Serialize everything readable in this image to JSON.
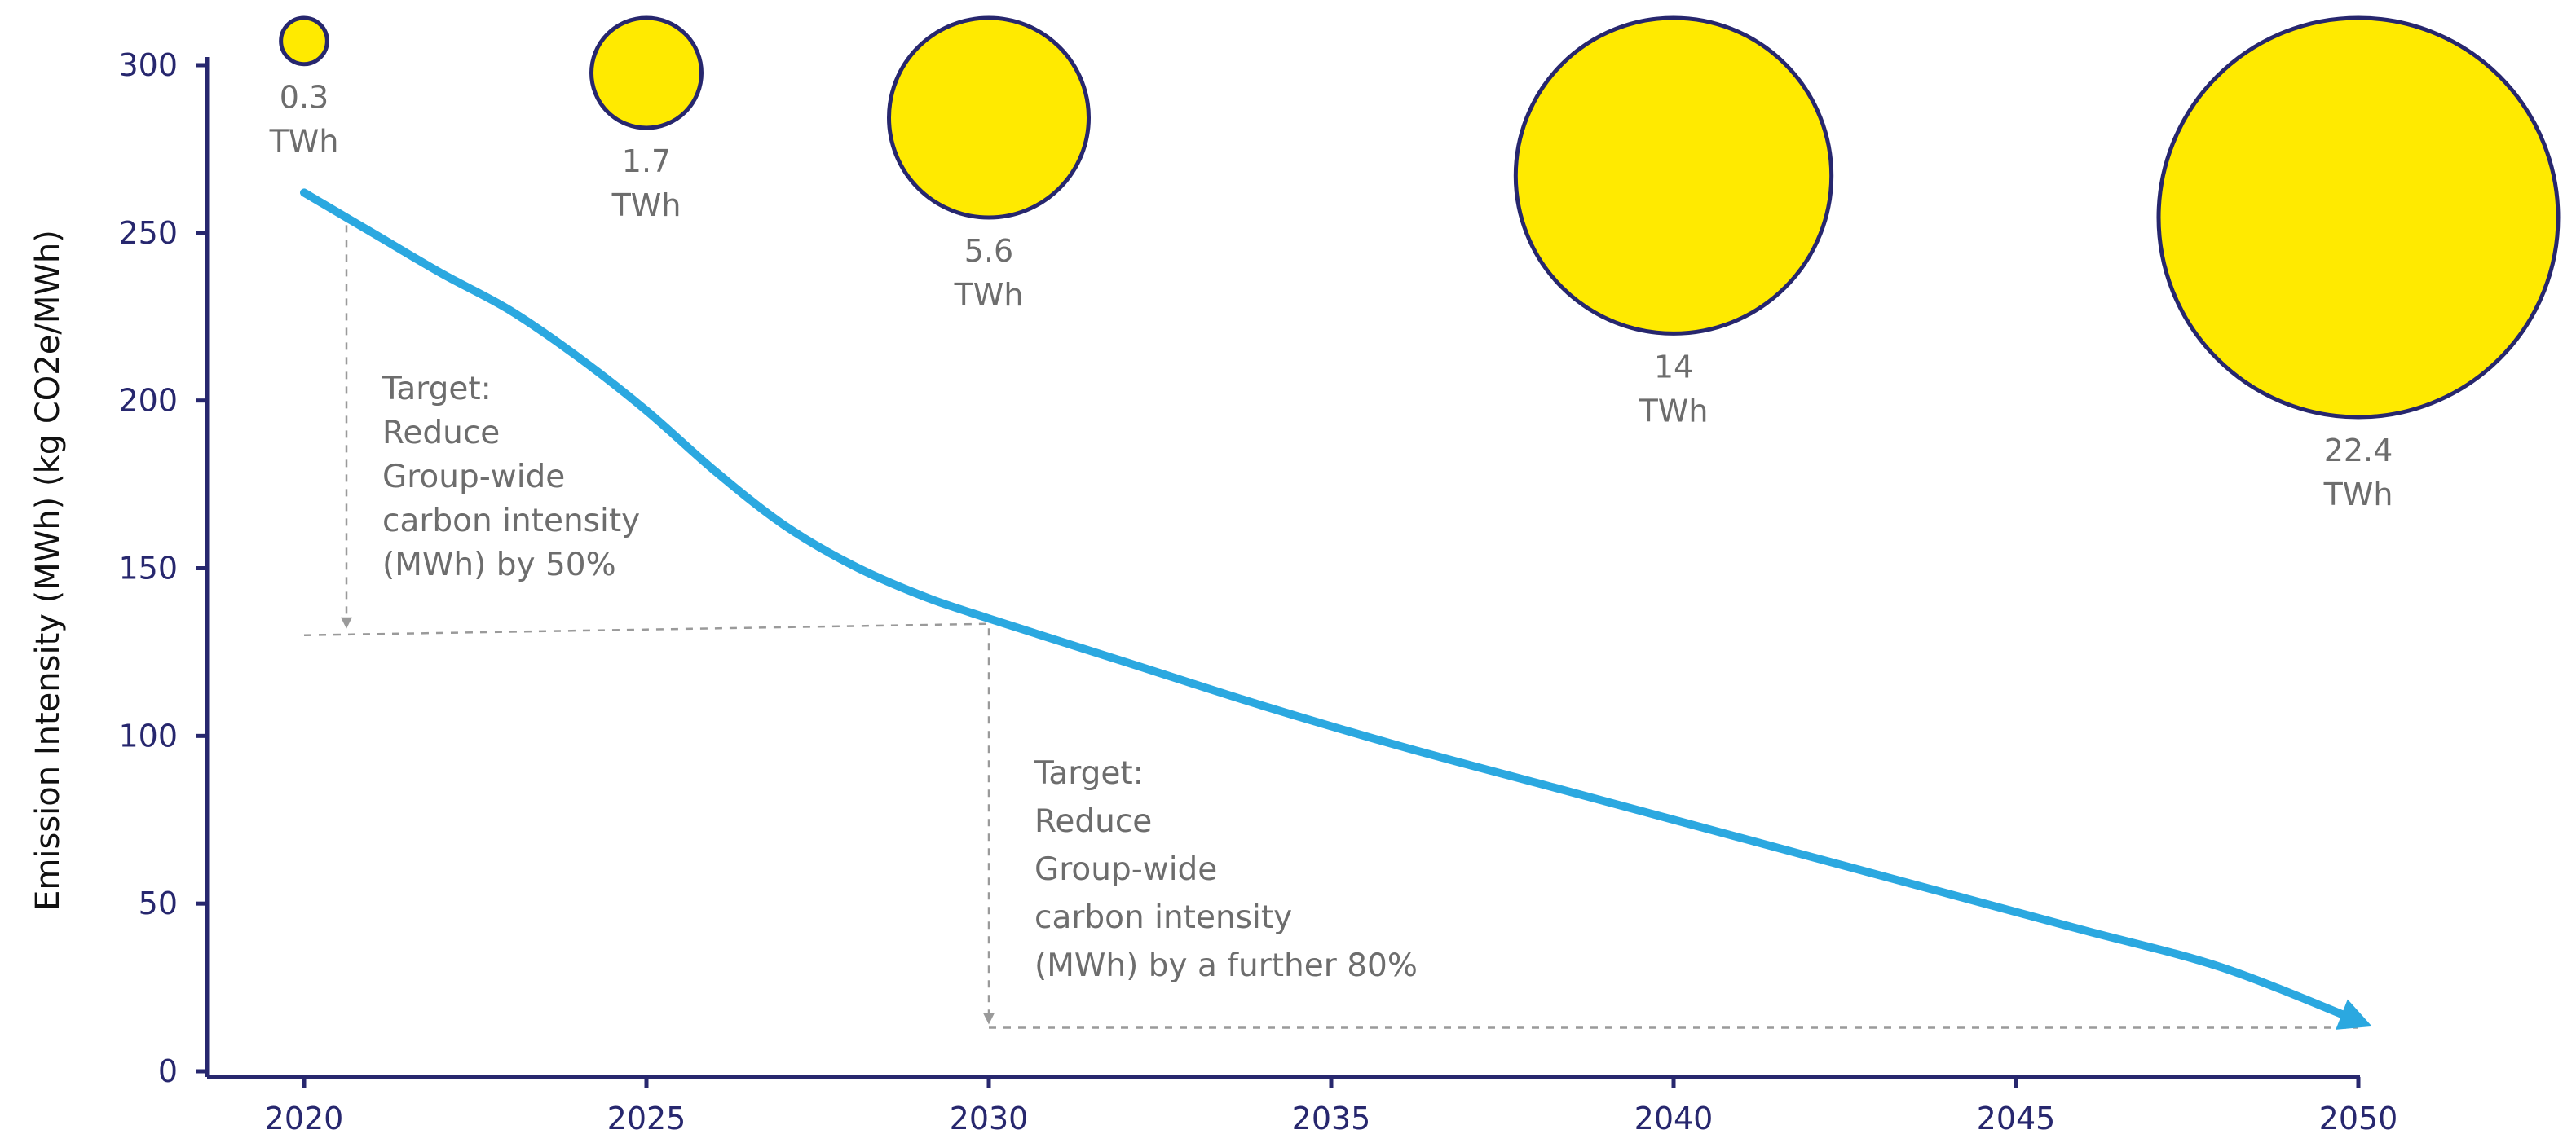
{
  "chart_data": {
    "type": "line",
    "title": "",
    "xlabel": "",
    "ylabel": "Emission Intensity (MWh) (kg CO2e/MWh)",
    "x_ticks": [
      "2020",
      "2025",
      "2030",
      "2035",
      "2040",
      "2045",
      "2050"
    ],
    "y_ticks": [
      "0",
      "50",
      "100",
      "150",
      "200",
      "250",
      "300"
    ],
    "xlim": [
      2020,
      2050
    ],
    "ylim": [
      0,
      300
    ],
    "grid": false,
    "series": [
      {
        "name": "",
        "color": "#2ba8e0",
        "x": [
          2020,
          2021,
          2022,
          2023,
          2024,
          2025,
          2026,
          2027,
          2028,
          2029,
          2030,
          2032,
          2034,
          2036,
          2038,
          2040,
          2042,
          2044,
          2046,
          2048,
          2050
        ],
        "y": [
          262,
          250,
          238,
          227,
          213,
          197,
          179,
          163,
          151,
          142,
          135,
          122,
          109,
          97,
          86,
          75,
          64,
          53,
          42,
          31,
          15
        ]
      }
    ],
    "bubbles": [
      {
        "x": 2020,
        "value": 0.3,
        "value_label": "0.3",
        "unit": "TWh"
      },
      {
        "x": 2025,
        "value": 1.7,
        "value_label": "1.7",
        "unit": "TWh"
      },
      {
        "x": 2030,
        "value": 5.6,
        "value_label": "5.6",
        "unit": "TWh"
      },
      {
        "x": 2040,
        "value": 14,
        "value_label": "14",
        "unit": "TWh"
      },
      {
        "x": 2050,
        "value": 22.4,
        "value_label": "22.4",
        "unit": "TWh"
      }
    ],
    "annotations": [
      {
        "lines": [
          "Target:",
          "Reduce",
          "Group-wide",
          "carbon intensity",
          "(MWh) by 50%"
        ],
        "x_from": 2020,
        "x_to": 2030,
        "y_level": 131
      },
      {
        "lines": [
          "Target:",
          "Reduce",
          "Group-wide",
          "carbon intensity",
          "(MWh) by a further 80%"
        ],
        "x_from": 2030,
        "x_to": 2050,
        "y_level": 13
      }
    ],
    "colors": {
      "axis": "#27276e",
      "line": "#2ba8e0",
      "bubble_fill": "#ffea00",
      "bubble_stroke": "#27276e",
      "annotation": "#6d6d6d",
      "dashed": "#9a9a9a"
    }
  }
}
